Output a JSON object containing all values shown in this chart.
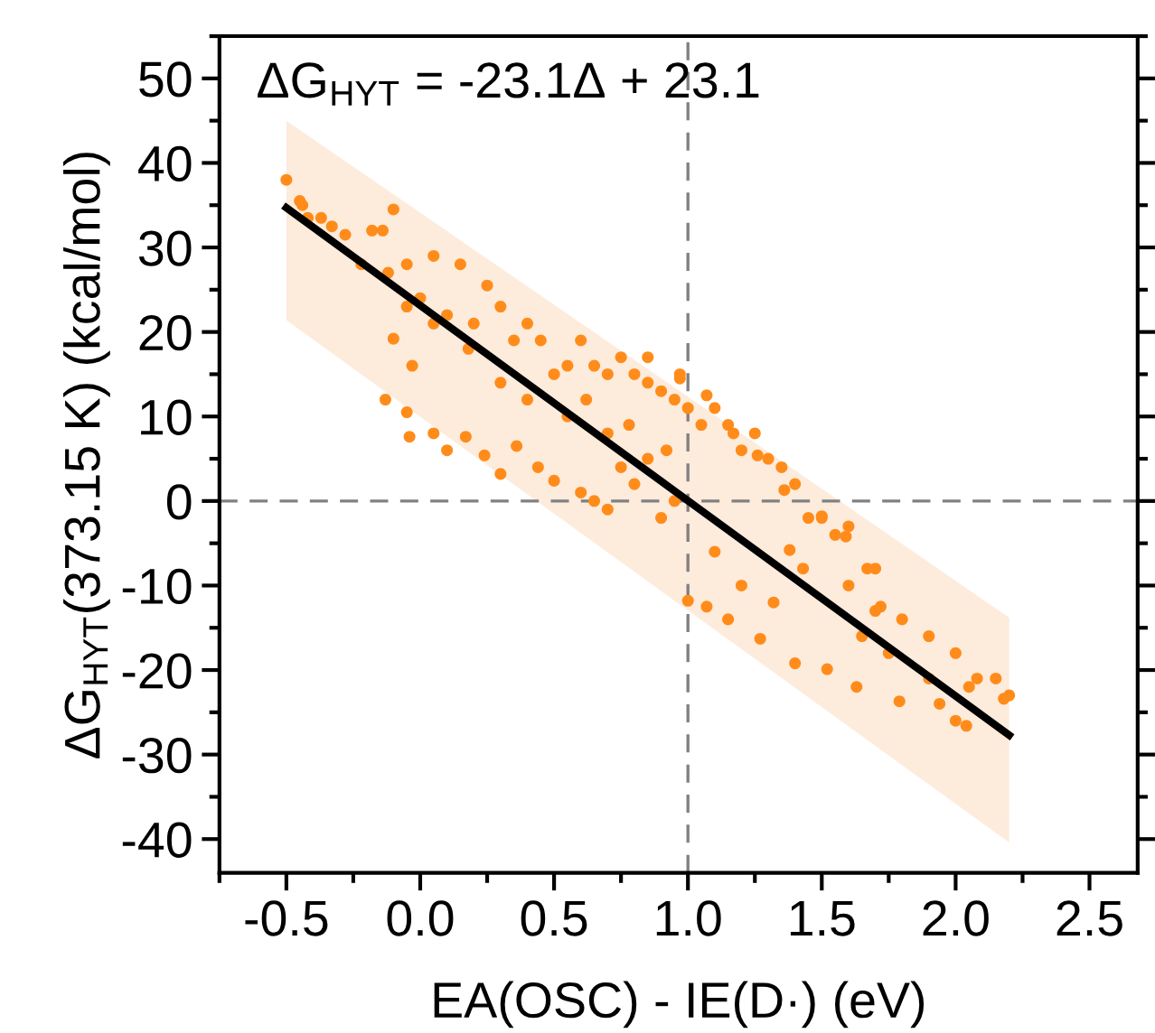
{
  "chart_data": {
    "type": "scatter",
    "xlabel": "EA(OSC) - IE(D·) (eV)",
    "ylabel": "ΔG$_{HYT}$(373.15 K) (kcal/mol)",
    "annotations": [
      "ΔG$_{HYT}$ = -23.1Δ + 23.1"
    ],
    "xlim": [
      -0.75,
      2.68
    ],
    "ylim": [
      -44,
      55
    ],
    "xticks": [
      -0.5,
      {
        "value": 0,
        "label": "0.0"
      },
      0.5,
      {
        "value": 1,
        "label": "1.0"
      },
      1.5,
      {
        "value": 2,
        "label": "2.0"
      },
      2.5
    ],
    "yticks": [
      -40,
      -30,
      -20,
      -10,
      0,
      10,
      20,
      30,
      40,
      50
    ],
    "grid": false,
    "legend": false,
    "ref_lines": [
      {
        "axis": "x",
        "value": 1.0,
        "color": "#808080",
        "line_style": "dashed"
      },
      {
        "axis": "y",
        "value": 0,
        "color": "#808080",
        "line_style": "dashed"
      }
    ],
    "series": [
      {
        "type": "line",
        "color": "#000000",
        "x": [
          -0.5,
          2.2
        ],
        "values": [
          34.7,
          -27.7
        ],
        "lower": [
          21.4,
          -40.4
        ],
        "upper": [
          45.0,
          -13.8
        ],
        "marker": "none",
        "line_style": "solid"
      },
      {
        "color": "#ff8c1a",
        "marker": "circle",
        "x": [
          -0.5,
          -0.45,
          -0.44,
          -0.42,
          -0.37,
          -0.33,
          -0.28,
          -0.18,
          -0.14,
          -0.1,
          -0.22,
          -0.12,
          -0.05,
          0.0,
          0.05,
          -0.05,
          0.05,
          0.1,
          0.15,
          0.2,
          0.25,
          0.18,
          0.3,
          0.35,
          0.4,
          0.45,
          0.55,
          0.5,
          0.6,
          0.65,
          0.7,
          0.75,
          0.8,
          0.85,
          0.9,
          0.95,
          0.85,
          1.0,
          1.05,
          0.97,
          1.1,
          1.15,
          1.2,
          1.25,
          1.3,
          1.35,
          1.4,
          1.45,
          1.5,
          1.55,
          1.6,
          1.7,
          1.6,
          1.7,
          1.8,
          1.9,
          2.0,
          2.05,
          2.15,
          2.2,
          2.0,
          1.9,
          1.75,
          1.65,
          0.17,
          0.24,
          0.44,
          0.5,
          0.3,
          0.36,
          0.1,
          0.05,
          0.6,
          0.65,
          0.7,
          0.75,
          0.8,
          0.9,
          0.95,
          1.27,
          1.07,
          1.4,
          1.0,
          1.52,
          1.63,
          1.59,
          1.67,
          1.72,
          1.5,
          1.79,
          1.94,
          2.04,
          2.08,
          2.18,
          0.97,
          1.07,
          1.17,
          1.26,
          1.36,
          1.38,
          1.43,
          -0.13,
          -0.1,
          -0.03,
          -0.05,
          -0.04,
          0.4,
          0.55,
          0.7,
          0.85,
          1.2,
          1.1,
          0.3,
          0.62,
          0.78,
          0.92,
          1.15,
          1.32
        ],
        "values": [
          38,
          35.5,
          35,
          33.5,
          33.5,
          32.5,
          31.5,
          32,
          32,
          34.5,
          28,
          27,
          28,
          24,
          29,
          23,
          21,
          22,
          28,
          21,
          25.5,
          18,
          23,
          19,
          21,
          19,
          16,
          15,
          19,
          16,
          15,
          17,
          15,
          14,
          13,
          12,
          17,
          11,
          9,
          14.5,
          11,
          9,
          6,
          8,
          5,
          4,
          2,
          -2,
          -2,
          -4,
          -3,
          -8,
          -10,
          -13,
          -14,
          -16,
          -18,
          -22,
          -21,
          -23,
          -26,
          -21,
          -18,
          -16,
          7.6,
          5.4,
          4.0,
          2.4,
          3.2,
          6.5,
          6,
          8,
          1,
          0,
          -1,
          4,
          2,
          -2,
          0,
          -16.3,
          -12.5,
          -19.2,
          -11.8,
          -19.9,
          -22,
          -4.2,
          -8,
          -12.5,
          -1.8,
          -23.7,
          -24,
          -26.6,
          -21,
          -23.4,
          15,
          12.5,
          8,
          5.4,
          1.3,
          -5.8,
          -8,
          12,
          19.2,
          16,
          10.5,
          7.6,
          12,
          10,
          8,
          5,
          -10,
          -6,
          14,
          12,
          9,
          6,
          -14,
          -12
        ]
      }
    ]
  }
}
